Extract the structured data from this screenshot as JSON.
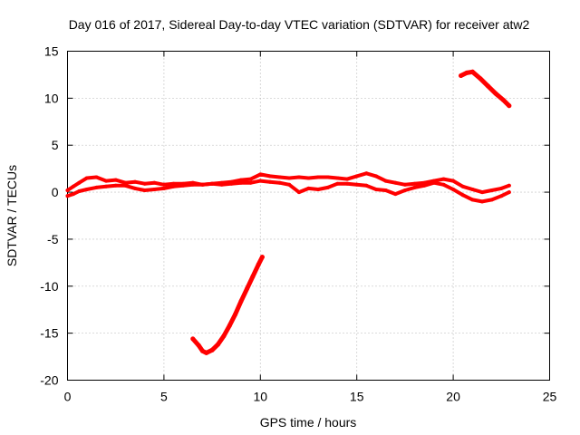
{
  "chart_data": {
    "type": "scatter",
    "title": "Day 016 of 2017, Sidereal Day-to-day VTEC variation (SDTVAR) for receiver atw2",
    "xlabel": "GPS time / hours",
    "ylabel": "SDTVAR / TECUs",
    "xlim": [
      0,
      25
    ],
    "ylim": [
      -20,
      15
    ],
    "xticks": [
      0,
      5,
      10,
      15,
      20,
      25
    ],
    "yticks": [
      -20,
      -15,
      -10,
      -5,
      0,
      5,
      10,
      15
    ],
    "xtick_labels": [
      "0",
      "5",
      "10",
      "15",
      "20",
      "25"
    ],
    "ytick_labels": [
      "-20",
      "-15",
      "-10",
      "-5",
      "0",
      "5",
      "10",
      "15"
    ],
    "grid": true,
    "color": "#ff0000",
    "series": [
      {
        "name": "main-band-upper",
        "x": [
          0.0,
          0.3,
          0.6,
          1.0,
          1.5,
          2.0,
          2.5,
          3.0,
          3.5,
          4.0,
          4.5,
          5.0,
          5.5,
          6.0,
          6.5,
          7.0,
          7.5,
          8.0,
          8.5,
          9.0,
          9.5,
          10.0,
          10.5,
          11.0,
          11.5,
          12.0,
          12.5,
          13.0,
          13.5,
          14.0,
          14.5,
          15.0,
          15.5,
          16.0,
          16.5,
          17.0,
          17.5,
          18.0,
          18.5,
          19.0,
          19.5,
          20.0,
          20.5,
          21.0,
          21.5,
          22.0,
          22.5,
          22.9
        ],
        "y": [
          0.2,
          0.6,
          1.0,
          1.5,
          1.6,
          1.2,
          1.3,
          1.0,
          1.1,
          0.9,
          1.0,
          0.8,
          0.9,
          0.9,
          1.0,
          0.8,
          0.9,
          1.0,
          1.1,
          1.3,
          1.4,
          1.9,
          1.7,
          1.6,
          1.5,
          1.6,
          1.5,
          1.6,
          1.6,
          1.5,
          1.4,
          1.7,
          2.0,
          1.7,
          1.2,
          1.0,
          0.8,
          0.9,
          1.0,
          1.2,
          1.4,
          1.2,
          0.6,
          0.3,
          0.0,
          0.2,
          0.4,
          0.7
        ],
        "width": 4
      },
      {
        "name": "main-band-lower",
        "x": [
          0.0,
          0.3,
          0.6,
          1.0,
          1.5,
          2.0,
          2.5,
          3.0,
          3.5,
          4.0,
          4.5,
          5.0,
          5.5,
          6.0,
          6.5,
          7.0,
          7.5,
          8.0,
          8.5,
          9.0,
          9.5,
          10.0,
          10.5,
          11.0,
          11.5,
          12.0,
          12.5,
          13.0,
          13.5,
          14.0,
          14.5,
          15.0,
          15.5,
          16.0,
          16.5,
          17.0,
          17.5,
          18.0,
          18.5,
          19.0,
          19.5,
          20.0,
          20.5,
          21.0,
          21.5,
          22.0,
          22.5,
          22.9
        ],
        "y": [
          -0.4,
          -0.2,
          0.1,
          0.3,
          0.5,
          0.6,
          0.7,
          0.7,
          0.4,
          0.2,
          0.3,
          0.4,
          0.6,
          0.7,
          0.8,
          0.8,
          0.9,
          0.8,
          0.9,
          1.0,
          1.0,
          1.2,
          1.1,
          1.0,
          0.8,
          0.0,
          0.4,
          0.3,
          0.5,
          0.9,
          0.9,
          0.8,
          0.7,
          0.3,
          0.2,
          -0.2,
          0.2,
          0.5,
          0.7,
          1.0,
          0.8,
          0.3,
          -0.3,
          -0.8,
          -1.0,
          -0.8,
          -0.4,
          0.0
        ],
        "width": 4
      },
      {
        "name": "low-arc",
        "x": [
          6.5,
          6.8,
          7.0,
          7.2,
          7.5,
          7.8,
          8.1,
          8.4,
          8.7,
          9.0,
          9.3,
          9.6,
          9.9,
          10.1
        ],
        "y": [
          -15.6,
          -16.3,
          -16.9,
          -17.1,
          -16.8,
          -16.2,
          -15.3,
          -14.2,
          -13.0,
          -11.6,
          -10.3,
          -9.0,
          -7.7,
          -6.9
        ],
        "width": 5
      },
      {
        "name": "high-track",
        "x": [
          20.4,
          20.7,
          21.0,
          21.4,
          21.8,
          22.2,
          22.6,
          22.9
        ],
        "y": [
          12.4,
          12.7,
          12.8,
          12.1,
          11.3,
          10.5,
          9.8,
          9.2
        ],
        "width": 5
      }
    ]
  }
}
